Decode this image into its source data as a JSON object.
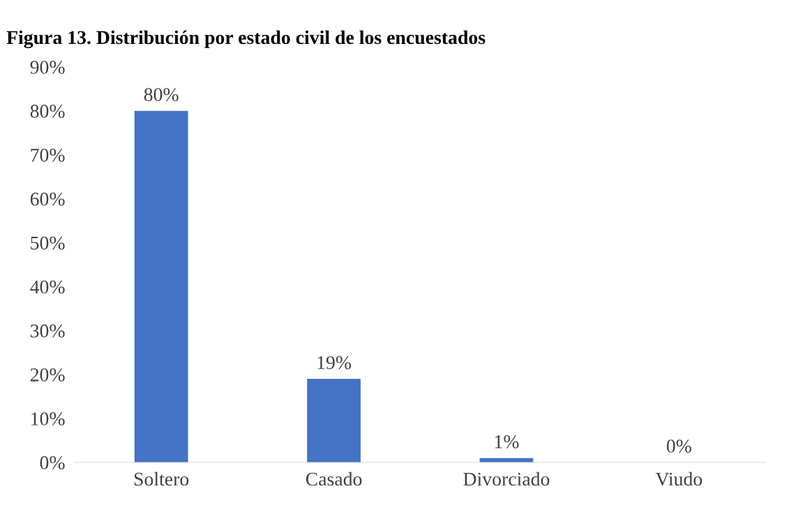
{
  "chart_data": {
    "type": "bar",
    "title": "Figura 13. Distribución por estado civil de los encuestados",
    "categories": [
      "Soltero",
      "Casado",
      "Divorciado",
      "Viudo"
    ],
    "values": [
      80,
      19,
      1,
      0
    ],
    "value_labels": [
      "80%",
      "19%",
      "1%",
      "0%"
    ],
    "color": "#4472c4",
    "ylim": [
      0,
      90
    ],
    "yticks": [
      {
        "value": 0,
        "label": "0%"
      },
      {
        "value": 10,
        "label": "10%"
      },
      {
        "value": 20,
        "label": "20%"
      },
      {
        "value": 30,
        "label": "30%"
      },
      {
        "value": 40,
        "label": "40%"
      },
      {
        "value": 50,
        "label": "50%"
      },
      {
        "value": 60,
        "label": "60%"
      },
      {
        "value": 70,
        "label": "70%"
      },
      {
        "value": 80,
        "label": "80%"
      },
      {
        "value": 90,
        "label": "90%"
      }
    ],
    "grid": false
  }
}
